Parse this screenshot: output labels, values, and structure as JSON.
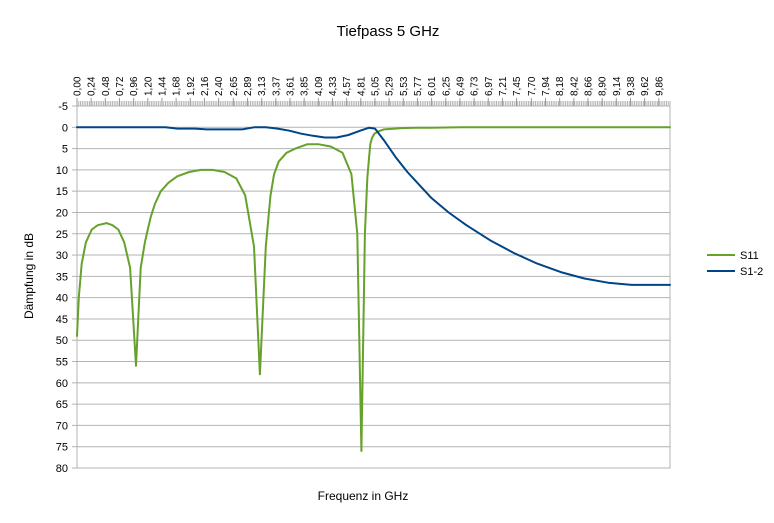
{
  "chart_data": {
    "type": "line",
    "title": "Tiefpass 5 GHz",
    "xlabel": "Frequenz in GHz",
    "ylabel": "Dämpfung in dB",
    "xlim": [
      0,
      10.05
    ],
    "ylim": [
      -5,
      80
    ],
    "y_inverted": true,
    "x_axis_position": "top",
    "grid": "horizontal",
    "legend_position": "right",
    "y_ticks": [
      "-5",
      "0",
      "5",
      "10",
      "15",
      "20",
      "25",
      "30",
      "35",
      "40",
      "45",
      "50",
      "55",
      "60",
      "65",
      "70",
      "75",
      "80"
    ],
    "x_ticks": [
      "0,00",
      "0,24",
      "0,48",
      "0,72",
      "0,96",
      "1,20",
      "1,44",
      "1,68",
      "1,92",
      "2,16",
      "2,40",
      "2,65",
      "2,89",
      "3,13",
      "3,37",
      "3,61",
      "3,85",
      "4,09",
      "4,33",
      "4,57",
      "4,81",
      "5,05",
      "5,29",
      "5,53",
      "5,77",
      "6,01",
      "6,25",
      "6,49",
      "6,73",
      "6,97",
      "7,21",
      "7,45",
      "7,70",
      "7,94",
      "8,18",
      "8,42",
      "8,66",
      "8,90",
      "9,14",
      "9,38",
      "9,62",
      "9,86"
    ],
    "series": [
      {
        "name": "S11",
        "color": "#66A12B",
        "x": [
          0.0,
          0.03,
          0.08,
          0.15,
          0.25,
          0.35,
          0.5,
          0.6,
          0.7,
          0.8,
          0.9,
          1.0,
          1.08,
          1.15,
          1.2,
          1.25,
          1.32,
          1.42,
          1.55,
          1.7,
          1.9,
          2.1,
          2.3,
          2.5,
          2.7,
          2.85,
          3.0,
          3.1,
          3.2,
          3.28,
          3.34,
          3.42,
          3.55,
          3.7,
          3.9,
          4.1,
          4.3,
          4.5,
          4.65,
          4.75,
          4.82,
          4.88,
          4.92,
          4.95,
          4.97,
          5.0,
          5.04,
          5.1,
          5.2,
          5.3,
          5.5,
          5.75,
          6.0,
          6.5,
          7.5,
          8.5,
          9.5,
          10.05
        ],
        "values": [
          49,
          40,
          32,
          27,
          24,
          23,
          22.5,
          23,
          24,
          27,
          33,
          56,
          33,
          27,
          24,
          21,
          18,
          15,
          13,
          11.5,
          10.5,
          10,
          10,
          10.5,
          12,
          16,
          28,
          58,
          28,
          16,
          11,
          8,
          6,
          5,
          4,
          4,
          4.5,
          6,
          11,
          25,
          76,
          25,
          12,
          7,
          4,
          2.5,
          1.5,
          1,
          0.5,
          0.4,
          0.2,
          0.1,
          0.1,
          0,
          0,
          0,
          0,
          0
        ]
      },
      {
        "name": "S1-2",
        "color": "#004586",
        "x": [
          0.0,
          0.5,
          1.0,
          1.5,
          1.7,
          2.0,
          2.2,
          2.5,
          2.8,
          3.0,
          3.2,
          3.4,
          3.6,
          3.8,
          4.0,
          4.2,
          4.4,
          4.6,
          4.8,
          4.95,
          5.05,
          5.2,
          5.4,
          5.6,
          5.8,
          6.0,
          6.3,
          6.6,
          7.0,
          7.4,
          7.8,
          8.2,
          8.6,
          9.0,
          9.4,
          9.8,
          10.05
        ],
        "values": [
          0,
          0,
          0,
          0,
          0.3,
          0.3,
          0.5,
          0.5,
          0.5,
          0,
          0,
          0.3,
          0.8,
          1.5,
          2,
          2.4,
          2.4,
          1.8,
          0.8,
          0.1,
          0.3,
          3,
          7,
          10.5,
          13.5,
          16.5,
          20,
          23,
          26.5,
          29.5,
          32,
          34,
          35.5,
          36.5,
          37,
          37,
          37
        ]
      }
    ]
  }
}
